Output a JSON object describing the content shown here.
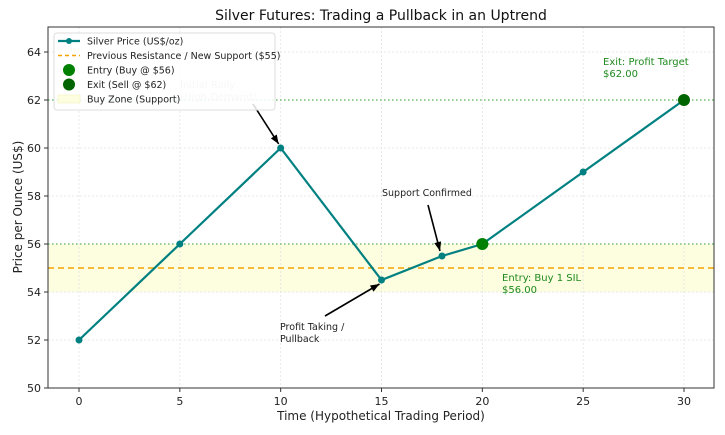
{
  "chart_data": {
    "type": "line",
    "title": "Silver Futures: Trading a Pullback in an Uptrend",
    "xlabel": "Time (Hypothetical Trading Period)",
    "ylabel": "Price per Ounce (US$)",
    "xlim": [
      -1.5,
      31.5
    ],
    "ylim": [
      50,
      65
    ],
    "xticks": [
      0,
      5,
      10,
      15,
      20,
      25,
      30
    ],
    "yticks": [
      50,
      52,
      54,
      56,
      58,
      60,
      62,
      64
    ],
    "grid": true,
    "legend_position": "upper left",
    "series": [
      {
        "name": "Silver Price (US$/oz)",
        "color": "#008080",
        "x": [
          0,
          5,
          10,
          15,
          18,
          20,
          25,
          30
        ],
        "values": [
          52,
          56,
          60,
          54.5,
          55.5,
          56,
          59,
          62
        ]
      }
    ],
    "hlines": [
      {
        "name": "Previous Resistance / New Support ($55)",
        "y": 55,
        "color": "#f5a300",
        "style": "dashed"
      },
      {
        "name": "entry-level",
        "y": 56,
        "color": "#5cb85c",
        "style": "dotted"
      },
      {
        "name": "exit-level",
        "y": 62,
        "color": "#5cb85c",
        "style": "dotted"
      }
    ],
    "bands": [
      {
        "name": "Buy Zone (Support)",
        "y0": 54,
        "y1": 56,
        "color": "#fdfde0"
      }
    ],
    "markers": [
      {
        "name": "Entry (Buy @ $56)",
        "x": 20,
        "y": 56,
        "color": "#008000"
      },
      {
        "name": "Exit (Sell @ $62)",
        "x": 30,
        "y": 62,
        "color": "#006400"
      }
    ],
    "annotations": [
      {
        "text": [
          "Initial Rally",
          "(High Demand)"
        ],
        "x": 10,
        "y": 60,
        "style": "faint"
      },
      {
        "text": [
          "Profit Taking /",
          "Pullback"
        ],
        "x": 15,
        "y": 54.5
      },
      {
        "text": [
          "Support Confirmed"
        ],
        "x": 18,
        "y": 55.5
      },
      {
        "text": [
          "Entry: Buy 1 SIL",
          "$56.00"
        ],
        "x": 21,
        "y": 54.4,
        "style": "green"
      },
      {
        "text": [
          "Exit: Profit Target",
          "$62.00"
        ],
        "x": 26,
        "y": 63.1,
        "style": "green"
      }
    ]
  }
}
